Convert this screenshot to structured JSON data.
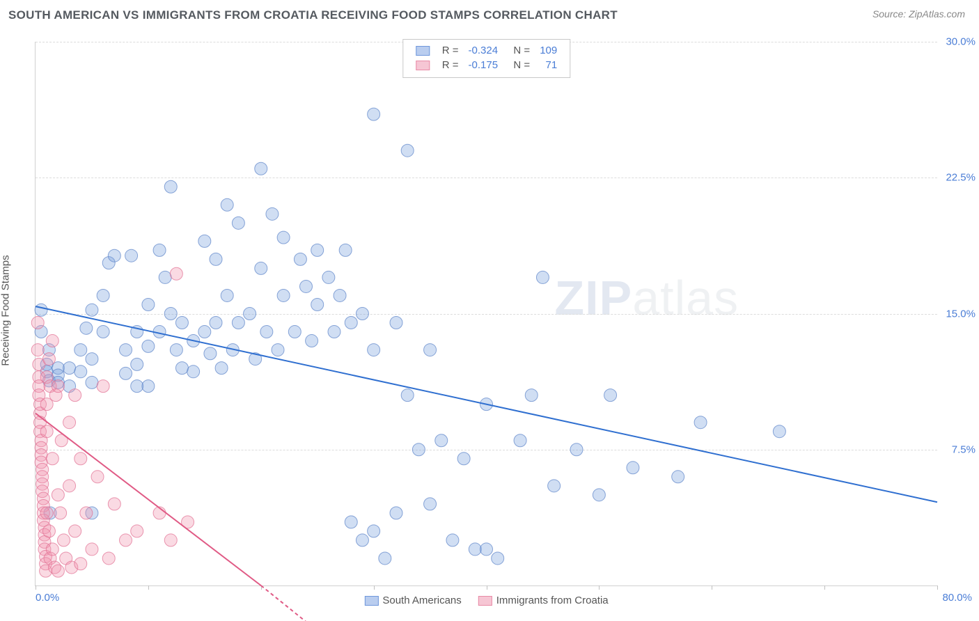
{
  "header": {
    "title": "SOUTH AMERICAN VS IMMIGRANTS FROM CROATIA RECEIVING FOOD STAMPS CORRELATION CHART",
    "source_prefix": "Source: ",
    "source": "ZipAtlas.com"
  },
  "ylabel": "Receiving Food Stamps",
  "watermark": {
    "left": "ZIP",
    "right": "atlas"
  },
  "axes": {
    "xlim": [
      0,
      80
    ],
    "ylim": [
      0,
      30
    ],
    "xticks": [
      0,
      10,
      20,
      30,
      40,
      50,
      60,
      70,
      80
    ],
    "yticks": [
      7.5,
      15.0,
      22.5,
      30.0
    ],
    "ytick_labels": [
      "7.5%",
      "15.0%",
      "22.5%",
      "30.0%"
    ],
    "xmin_label": "0.0%",
    "xmax_label": "80.0%",
    "grid_color": "#dcdcdc",
    "axis_color": "#d0d0d0"
  },
  "stats": {
    "rows": [
      {
        "swatch_fill": "#b9cdef",
        "swatch_border": "#6f97db",
        "r": "-0.324",
        "n": "109"
      },
      {
        "swatch_fill": "#f6c6d4",
        "swatch_border": "#e88aa6",
        "r": "-0.175",
        "n": "71"
      }
    ],
    "labels": {
      "R": "R =",
      "N": "N ="
    }
  },
  "legend": {
    "items": [
      {
        "swatch_fill": "#b9cdef",
        "swatch_border": "#6f97db",
        "label": "South Americans"
      },
      {
        "swatch_fill": "#f6c6d4",
        "swatch_border": "#e88aa6",
        "label": "Immigrants from Croatia"
      }
    ]
  },
  "series": [
    {
      "name": "south_americans",
      "type": "scatter",
      "marker_fill": "rgba(120,160,220,0.35)",
      "marker_stroke": "rgba(90,130,200,0.7)",
      "marker_r": 9,
      "line_color": "#2f6fd0",
      "line_width": 2,
      "trend": {
        "x1": 0,
        "y1": 15.4,
        "x2": 80,
        "y2": 4.6
      },
      "points": [
        [
          0.5,
          15.2
        ],
        [
          0.5,
          14.0
        ],
        [
          1,
          12.2
        ],
        [
          1,
          11.8
        ],
        [
          1.2,
          13.0
        ],
        [
          1.2,
          11.3
        ],
        [
          1.3,
          4.0
        ],
        [
          2,
          12.0
        ],
        [
          2,
          11.6
        ],
        [
          2,
          11.2
        ],
        [
          3,
          12.0
        ],
        [
          3,
          11.0
        ],
        [
          4,
          13.0
        ],
        [
          4,
          11.8
        ],
        [
          4.5,
          14.2
        ],
        [
          5,
          15.2
        ],
        [
          5,
          12.5
        ],
        [
          5,
          11.2
        ],
        [
          5,
          4.0
        ],
        [
          6,
          16.0
        ],
        [
          6,
          14.0
        ],
        [
          6.5,
          17.8
        ],
        [
          7,
          18.2
        ],
        [
          8,
          13.0
        ],
        [
          8,
          11.7
        ],
        [
          8.5,
          18.2
        ],
        [
          9,
          14.0
        ],
        [
          9,
          12.2
        ],
        [
          9,
          11.0
        ],
        [
          10,
          15.5
        ],
        [
          10,
          13.2
        ],
        [
          10,
          11.0
        ],
        [
          11,
          18.5
        ],
        [
          11,
          14.0
        ],
        [
          11.5,
          17.0
        ],
        [
          12,
          22.0
        ],
        [
          12,
          15.0
        ],
        [
          12.5,
          13.0
        ],
        [
          13,
          14.5
        ],
        [
          13,
          12.0
        ],
        [
          14,
          13.5
        ],
        [
          14,
          11.8
        ],
        [
          15,
          19.0
        ],
        [
          15,
          14.0
        ],
        [
          15.5,
          12.8
        ],
        [
          16,
          18.0
        ],
        [
          16,
          14.5
        ],
        [
          16.5,
          12.0
        ],
        [
          17,
          21.0
        ],
        [
          17,
          16.0
        ],
        [
          17.5,
          13.0
        ],
        [
          18,
          20.0
        ],
        [
          18,
          14.5
        ],
        [
          19,
          15.0
        ],
        [
          19.5,
          12.5
        ],
        [
          20,
          23.0
        ],
        [
          20,
          17.5
        ],
        [
          20.5,
          14.0
        ],
        [
          21,
          20.5
        ],
        [
          21.5,
          13.0
        ],
        [
          22,
          19.2
        ],
        [
          22,
          16.0
        ],
        [
          23,
          14.0
        ],
        [
          23.5,
          18.0
        ],
        [
          24,
          16.5
        ],
        [
          24.5,
          13.5
        ],
        [
          25,
          18.5
        ],
        [
          25,
          15.5
        ],
        [
          26,
          17.0
        ],
        [
          26.5,
          14.0
        ],
        [
          27,
          16.0
        ],
        [
          27.5,
          18.5
        ],
        [
          28,
          14.5
        ],
        [
          28,
          3.5
        ],
        [
          29,
          15.0
        ],
        [
          29,
          2.5
        ],
        [
          30,
          26.0
        ],
        [
          30,
          13.0
        ],
        [
          30,
          3.0
        ],
        [
          31,
          1.5
        ],
        [
          32,
          14.5
        ],
        [
          32,
          4.0
        ],
        [
          33,
          24.0
        ],
        [
          33,
          10.5
        ],
        [
          34,
          7.5
        ],
        [
          35,
          13.0
        ],
        [
          35,
          4.5
        ],
        [
          36,
          8.0
        ],
        [
          37,
          2.5
        ],
        [
          38,
          7.0
        ],
        [
          39,
          2.0
        ],
        [
          40,
          10.0
        ],
        [
          40,
          2.0
        ],
        [
          41,
          1.5
        ],
        [
          43,
          8.0
        ],
        [
          44,
          10.5
        ],
        [
          45,
          17.0
        ],
        [
          46,
          5.5
        ],
        [
          48,
          7.5
        ],
        [
          50,
          5.0
        ],
        [
          51,
          10.5
        ],
        [
          53,
          6.5
        ],
        [
          57,
          6.0
        ],
        [
          59,
          9.0
        ],
        [
          66,
          8.5
        ]
      ]
    },
    {
      "name": "immigrants_croatia",
      "type": "scatter",
      "marker_fill": "rgba(240,150,175,0.35)",
      "marker_stroke": "rgba(225,110,145,0.7)",
      "marker_r": 9,
      "line_color": "#e05a85",
      "line_width": 2,
      "trend": {
        "x1": 0,
        "y1": 9.5,
        "x2": 20,
        "y2": 0
      },
      "trend_dash_extend": {
        "x1": 20,
        "y1": 0,
        "x2": 24,
        "y2": -2
      },
      "points": [
        [
          0.2,
          14.5
        ],
        [
          0.2,
          13.0
        ],
        [
          0.3,
          12.2
        ],
        [
          0.3,
          11.5
        ],
        [
          0.3,
          11.0
        ],
        [
          0.3,
          10.5
        ],
        [
          0.4,
          10.0
        ],
        [
          0.4,
          9.5
        ],
        [
          0.4,
          9.0
        ],
        [
          0.4,
          8.5
        ],
        [
          0.5,
          8.0
        ],
        [
          0.5,
          7.6
        ],
        [
          0.5,
          7.2
        ],
        [
          0.5,
          6.8
        ],
        [
          0.6,
          6.4
        ],
        [
          0.6,
          6.0
        ],
        [
          0.6,
          5.6
        ],
        [
          0.6,
          5.2
        ],
        [
          0.7,
          4.8
        ],
        [
          0.7,
          4.4
        ],
        [
          0.7,
          4.0
        ],
        [
          0.7,
          3.6
        ],
        [
          0.8,
          3.2
        ],
        [
          0.8,
          2.8
        ],
        [
          0.8,
          2.4
        ],
        [
          0.8,
          2.0
        ],
        [
          0.9,
          1.6
        ],
        [
          0.9,
          1.2
        ],
        [
          0.9,
          0.8
        ],
        [
          1.0,
          11.5
        ],
        [
          1.0,
          10.0
        ],
        [
          1.0,
          8.5
        ],
        [
          1.0,
          4.0
        ],
        [
          1.2,
          12.5
        ],
        [
          1.2,
          3.0
        ],
        [
          1.3,
          11.0
        ],
        [
          1.3,
          1.5
        ],
        [
          1.5,
          13.5
        ],
        [
          1.5,
          7.0
        ],
        [
          1.5,
          2.0
        ],
        [
          1.7,
          1.0
        ],
        [
          1.8,
          10.5
        ],
        [
          2.0,
          11.0
        ],
        [
          2.0,
          5.0
        ],
        [
          2.0,
          0.8
        ],
        [
          2.2,
          4.0
        ],
        [
          2.3,
          8.0
        ],
        [
          2.5,
          2.5
        ],
        [
          2.7,
          1.5
        ],
        [
          3.0,
          9.0
        ],
        [
          3.0,
          5.5
        ],
        [
          3.2,
          1.0
        ],
        [
          3.5,
          10.5
        ],
        [
          3.5,
          3.0
        ],
        [
          4.0,
          7.0
        ],
        [
          4.0,
          1.2
        ],
        [
          4.5,
          4.0
        ],
        [
          5.0,
          2.0
        ],
        [
          5.5,
          6.0
        ],
        [
          6.0,
          11.0
        ],
        [
          6.5,
          1.5
        ],
        [
          7.0,
          4.5
        ],
        [
          8.0,
          2.5
        ],
        [
          9.0,
          3.0
        ],
        [
          11.0,
          4.0
        ],
        [
          12.0,
          2.5
        ],
        [
          13.5,
          3.5
        ],
        [
          12.5,
          17.2
        ]
      ]
    }
  ],
  "colors": {
    "tick_text": "#4a7dd6",
    "label_text": "#555a60",
    "background": "#ffffff"
  }
}
